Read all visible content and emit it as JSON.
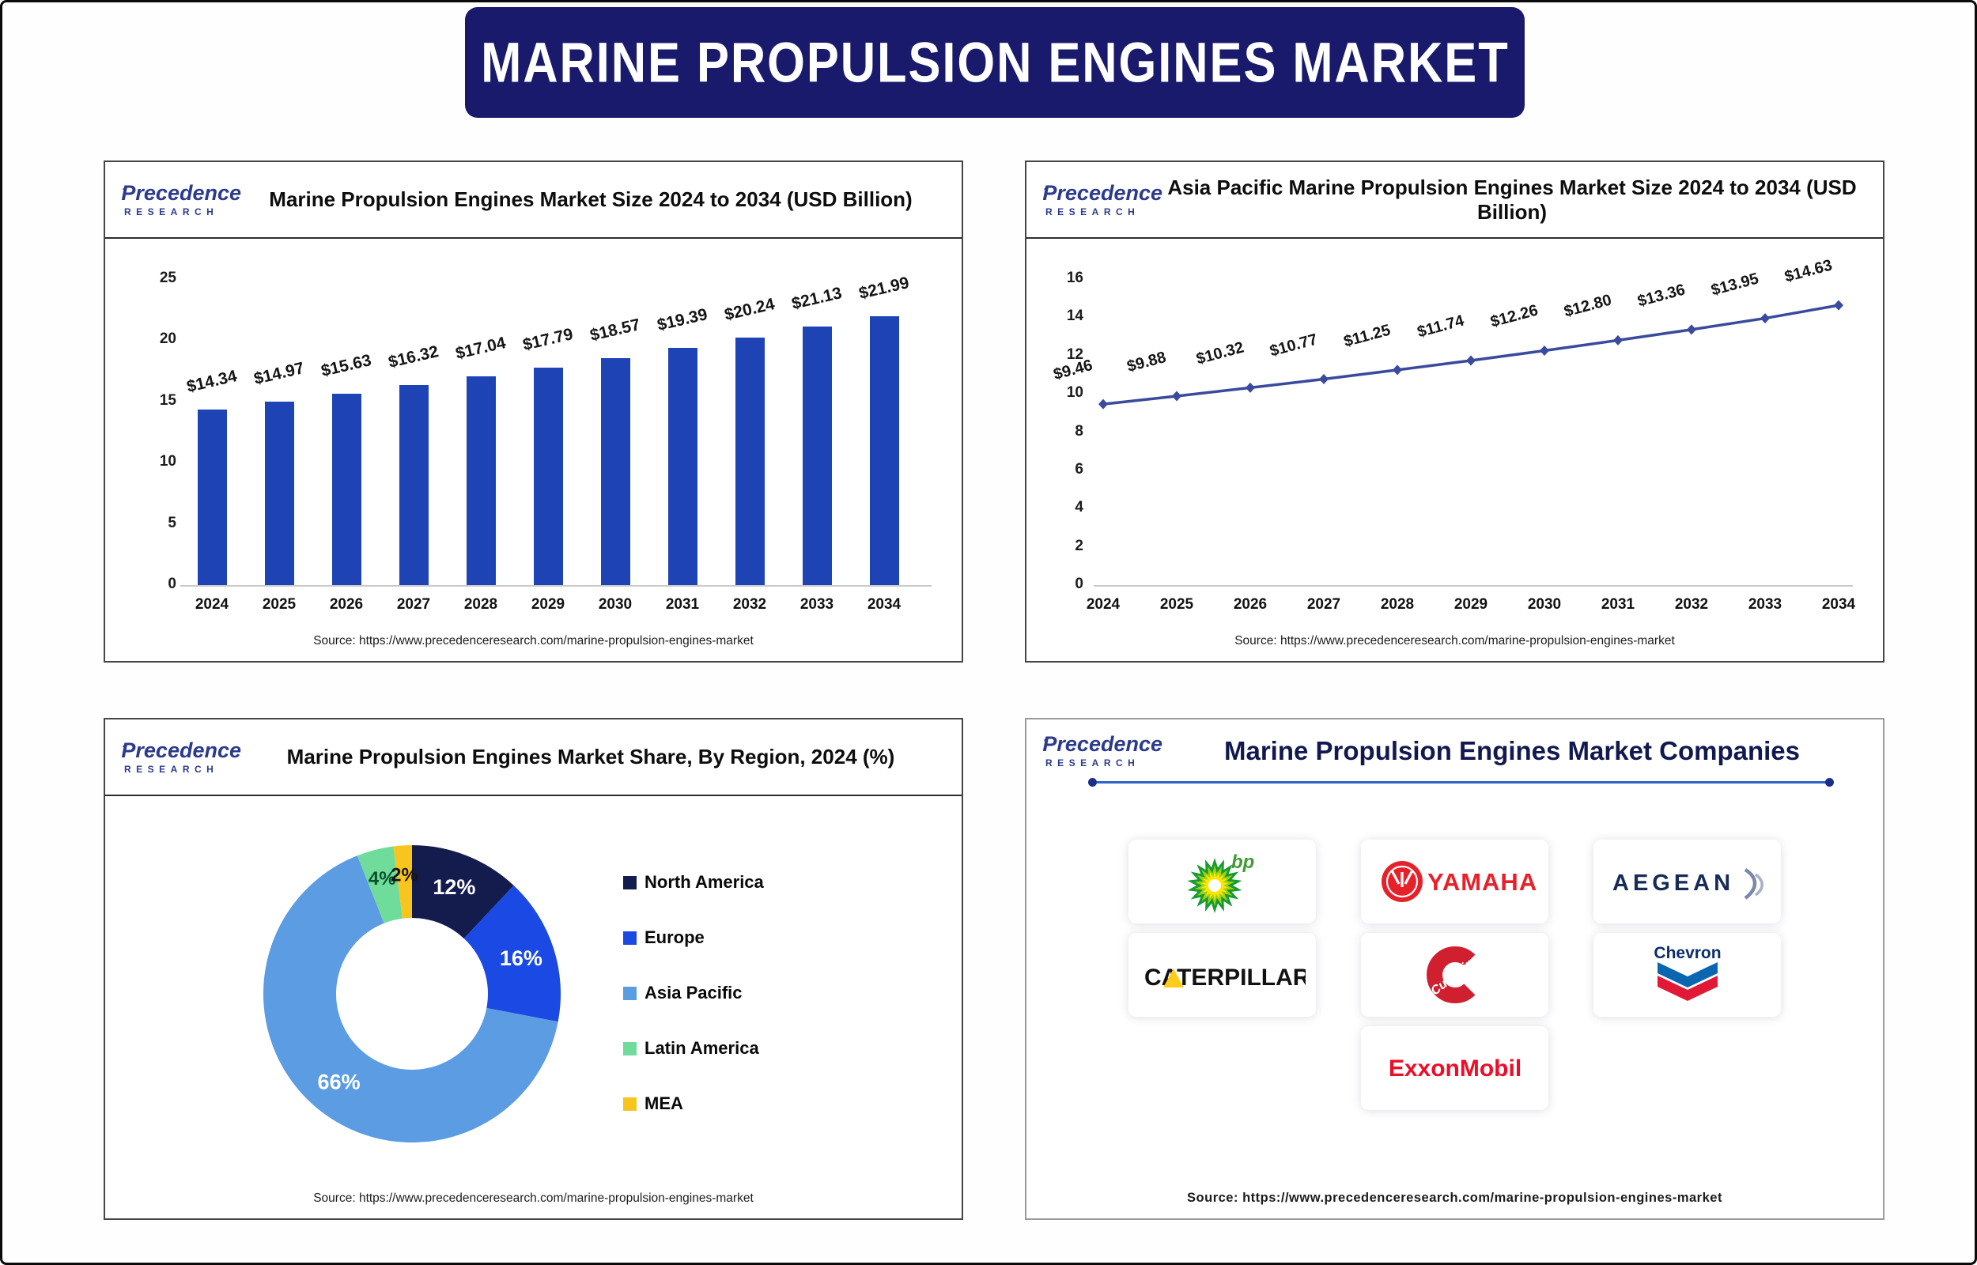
{
  "banner": {
    "title": "MARINE PROPULSION ENGINES MARKET",
    "bg_color": "#1a1a6c"
  },
  "logo": {
    "brand": "Precedence",
    "research": "RESEARCH"
  },
  "chart_data": [
    {
      "type": "bar",
      "title": "Marine Propulsion Engines Market Size 2024 to 2034 (USD Billion)",
      "source": "Source: https://www.precedenceresearch.com/marine-propulsion-engines-market",
      "categories": [
        "2024",
        "2025",
        "2026",
        "2027",
        "2028",
        "2029",
        "2030",
        "2031",
        "2032",
        "2033",
        "2034"
      ],
      "values": [
        14.34,
        14.97,
        15.63,
        16.32,
        17.04,
        17.79,
        18.57,
        19.39,
        20.24,
        21.13,
        21.99
      ],
      "label_prefix": "$",
      "ylim": [
        0,
        25
      ],
      "ytick_step": 5,
      "bar_color": "#1d43b5",
      "grid": false,
      "legend_position": "none"
    },
    {
      "type": "line",
      "title": "Asia Pacific Marine Propulsion Engines Market Size 2024 to 2034 (USD Billion)",
      "source": "Source: https://www.precedenceresearch.com/marine-propulsion-engines-market",
      "categories": [
        "2024",
        "2025",
        "2026",
        "2027",
        "2028",
        "2029",
        "2030",
        "2031",
        "2032",
        "2033",
        "2034"
      ],
      "values": [
        9.46,
        9.88,
        10.32,
        10.77,
        11.25,
        11.74,
        12.26,
        12.8,
        13.36,
        13.95,
        14.63
      ],
      "label_prefix": "$",
      "ylim": [
        0,
        16
      ],
      "ytick_step": 2,
      "line_color": "#3a4a9c",
      "grid": false,
      "legend_position": "none"
    },
    {
      "type": "pie",
      "donut": true,
      "title": "Marine Propulsion Engines Market  Share, By Region, 2024 (%)",
      "source": "Source: https://www.precedenceresearch.com/marine-propulsion-engines-market",
      "labels": [
        "North America",
        "Europe",
        "Asia Pacific",
        "Latin America",
        "MEA"
      ],
      "values": [
        12,
        16,
        66,
        4,
        2
      ],
      "colors": [
        "#141b4d",
        "#1b49e4",
        "#5b9ce2",
        "#6fdc9c",
        "#f7c51e"
      ],
      "slice_label_colors": [
        "#ffffff",
        "#ffffff",
        "#ffffff",
        "#0c4f2a",
        "#151515"
      ],
      "legend_position": "right"
    }
  ],
  "companies": {
    "title": "Marine Propulsion Engines Market Companies",
    "source": "Source: https://www.precedenceresearch.com/marine-propulsion-engines-market",
    "divider_color": "#2a64c8",
    "items": [
      {
        "id": "bp",
        "name": "bp",
        "color": "#3f9c35"
      },
      {
        "id": "yamaha",
        "name": "YAMAHA",
        "color": "#e62129"
      },
      {
        "id": "aegean",
        "name": "AEGEAN",
        "color": "#182a56"
      },
      {
        "id": "caterpillar",
        "name": "CATERPILLAR",
        "color": "#111111"
      },
      {
        "id": "cummins",
        "name": "Cummins",
        "color": "#d02030"
      },
      {
        "id": "chevron",
        "name": "Chevron",
        "color": "#0b2d6b"
      },
      {
        "id": "exxonmobil",
        "name": "ExxonMobil",
        "color": "#ee0c28"
      }
    ]
  }
}
